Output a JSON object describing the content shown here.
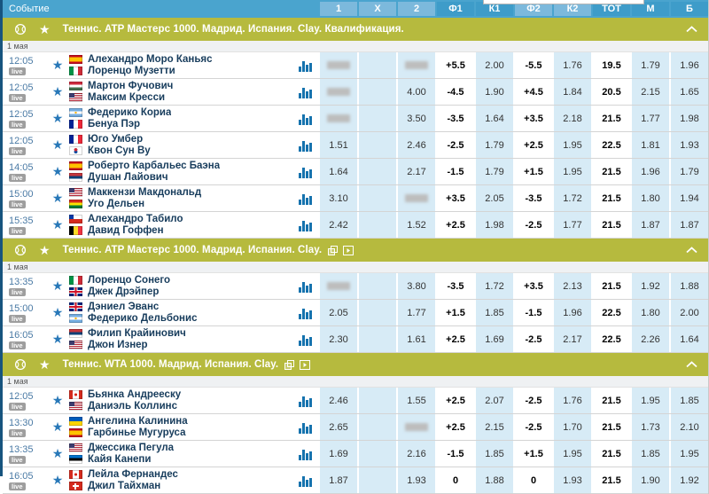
{
  "window": {
    "event_header": "Событие"
  },
  "columns": [
    {
      "label": "1",
      "tone": "light"
    },
    {
      "label": "X",
      "tone": "light"
    },
    {
      "label": "2",
      "tone": "light"
    },
    {
      "label": "Ф1",
      "tone": "dark"
    },
    {
      "label": "К1",
      "tone": "dark"
    },
    {
      "label": "Ф2",
      "tone": "light"
    },
    {
      "label": "К2",
      "tone": "light"
    },
    {
      "label": "ТОТ",
      "tone": "dark"
    },
    {
      "label": "М",
      "tone": "dark"
    },
    {
      "label": "Б",
      "tone": "dark"
    }
  ],
  "col_styles": [
    "num",
    "num",
    "num",
    "hcap",
    "num",
    "hcap",
    "num",
    "hcap",
    "num",
    "num"
  ],
  "colors": {
    "header_blue": "#4AA4CE",
    "column_light_blue": "#7CB9DC",
    "column_dark_blue": "#3E9CC9",
    "cell_blue": "#D7EBF6",
    "section_olive": "#B6BA3E",
    "star_blue": "#2878B8",
    "time_blue": "#4A7AA5",
    "name_navy": "#173C5C",
    "live_gray": "#9E9E9E"
  },
  "sections": [
    {
      "title": "Теннис. ATP Мастерс 1000. Мадрид. Испания. Clay. Квалификация.",
      "stream_icons": false,
      "date": "1 мая",
      "rows": [
        {
          "time": "12:05",
          "live_label": "live",
          "player1": "Алехандро Моро Каньяс",
          "flag1": "es",
          "player2": "Лоренцо Музетти",
          "flag2": "it",
          "odds": [
            "blur",
            "",
            "blur",
            "+5.5",
            "2.00",
            "-5.5",
            "1.76",
            "19.5",
            "1.79",
            "1.96"
          ]
        },
        {
          "time": "12:05",
          "live_label": "live",
          "player1": "Мартон Фучович",
          "flag1": "hu",
          "player2": "Максим Кресси",
          "flag2": "us",
          "odds": [
            "blur",
            "",
            "4.00",
            "-4.5",
            "1.90",
            "+4.5",
            "1.84",
            "20.5",
            "2.15",
            "1.65"
          ]
        },
        {
          "time": "12:05",
          "live_label": "live",
          "player1": "Федерико Кориа",
          "flag1": "ar",
          "player2": "Бенуа Пэр",
          "flag2": "fr",
          "odds": [
            "blur",
            "",
            "3.50",
            "-3.5",
            "1.64",
            "+3.5",
            "2.18",
            "21.5",
            "1.77",
            "1.98"
          ]
        },
        {
          "time": "12:05",
          "live_label": "live",
          "player1": "Юго Умбер",
          "flag1": "fr",
          "player2": "Квон Сун Ву",
          "flag2": "kr",
          "odds": [
            "1.51",
            "",
            "2.46",
            "-2.5",
            "1.79",
            "+2.5",
            "1.95",
            "22.5",
            "1.81",
            "1.93"
          ]
        },
        {
          "time": "14:05",
          "live_label": "live",
          "player1": "Роберто Карбальес Баэна",
          "flag1": "es",
          "player2": "Душан Лайович",
          "flag2": "rs",
          "odds": [
            "1.64",
            "",
            "2.17",
            "-1.5",
            "1.79",
            "+1.5",
            "1.95",
            "21.5",
            "1.96",
            "1.79"
          ]
        },
        {
          "time": "15:00",
          "live_label": "live",
          "player1": "Маккензи Макдональд",
          "flag1": "us",
          "player2": "Уго Дельен",
          "flag2": "bo",
          "odds": [
            "3.10",
            "",
            "blur",
            "+3.5",
            "2.05",
            "-3.5",
            "1.72",
            "21.5",
            "1.80",
            "1.94"
          ]
        },
        {
          "time": "15:35",
          "live_label": "live",
          "player1": "Алехандро Табило",
          "flag1": "cl",
          "player2": "Давид Гоффен",
          "flag2": "be",
          "odds": [
            "2.42",
            "",
            "1.52",
            "+2.5",
            "1.98",
            "-2.5",
            "1.77",
            "21.5",
            "1.87",
            "1.87"
          ]
        }
      ]
    },
    {
      "title": "Теннис. ATP Мастерс 1000. Мадрид. Испания. Clay.",
      "stream_icons": true,
      "date": "1 мая",
      "rows": [
        {
          "time": "13:35",
          "live_label": "live",
          "player1": "Лоренцо Сонего",
          "flag1": "it",
          "player2": "Джек Дрэйпер",
          "flag2": "gb",
          "odds": [
            "blur",
            "",
            "3.80",
            "-3.5",
            "1.72",
            "+3.5",
            "2.13",
            "21.5",
            "1.92",
            "1.88"
          ]
        },
        {
          "time": "15:00",
          "live_label": "live",
          "player1": "Дэниел Эванс",
          "flag1": "gb",
          "player2": "Федерико Дельбонис",
          "flag2": "ar",
          "odds": [
            "2.05",
            "",
            "1.77",
            "+1.5",
            "1.85",
            "-1.5",
            "1.96",
            "22.5",
            "1.80",
            "2.00"
          ]
        },
        {
          "time": "16:05",
          "live_label": "live",
          "player1": "Филип Крайинович",
          "flag1": "rs",
          "player2": "Джон Изнер",
          "flag2": "us",
          "odds": [
            "2.30",
            "",
            "1.61",
            "+2.5",
            "1.69",
            "-2.5",
            "2.17",
            "22.5",
            "2.26",
            "1.64"
          ]
        }
      ]
    },
    {
      "title": "Теннис. WTA 1000. Мадрид. Испания. Clay.",
      "stream_icons": true,
      "date": "1 мая",
      "rows": [
        {
          "time": "12:05",
          "live_label": "live",
          "player1": "Бьянка Андрееску",
          "flag1": "ca",
          "player2": "Даниэль Коллинс",
          "flag2": "us",
          "odds": [
            "2.46",
            "",
            "1.55",
            "+2.5",
            "2.07",
            "-2.5",
            "1.76",
            "21.5",
            "1.95",
            "1.85"
          ]
        },
        {
          "time": "13:30",
          "live_label": "live",
          "player1": "Ангелина Калинина",
          "flag1": "ua",
          "player2": "Гарбинье Мугуруса",
          "flag2": "es",
          "odds": [
            "2.65",
            "",
            "blur",
            "+2.5",
            "2.15",
            "-2.5",
            "1.70",
            "21.5",
            "1.73",
            "2.10"
          ]
        },
        {
          "time": "13:35",
          "live_label": "live",
          "player1": "Джессика Пегула",
          "flag1": "us",
          "player2": "Кайя Канепи",
          "flag2": "ee",
          "odds": [
            "1.69",
            "",
            "2.16",
            "-1.5",
            "1.85",
            "+1.5",
            "1.95",
            "21.5",
            "1.85",
            "1.95"
          ]
        },
        {
          "time": "16:05",
          "live_label": "live",
          "player1": "Лейла Фернандес",
          "flag1": "ca",
          "player2": "Джил Тайхман",
          "flag2": "ch",
          "odds": [
            "1.87",
            "",
            "1.93",
            "0",
            "1.88",
            "0",
            "1.93",
            "21.5",
            "1.90",
            "1.92"
          ]
        }
      ]
    }
  ]
}
